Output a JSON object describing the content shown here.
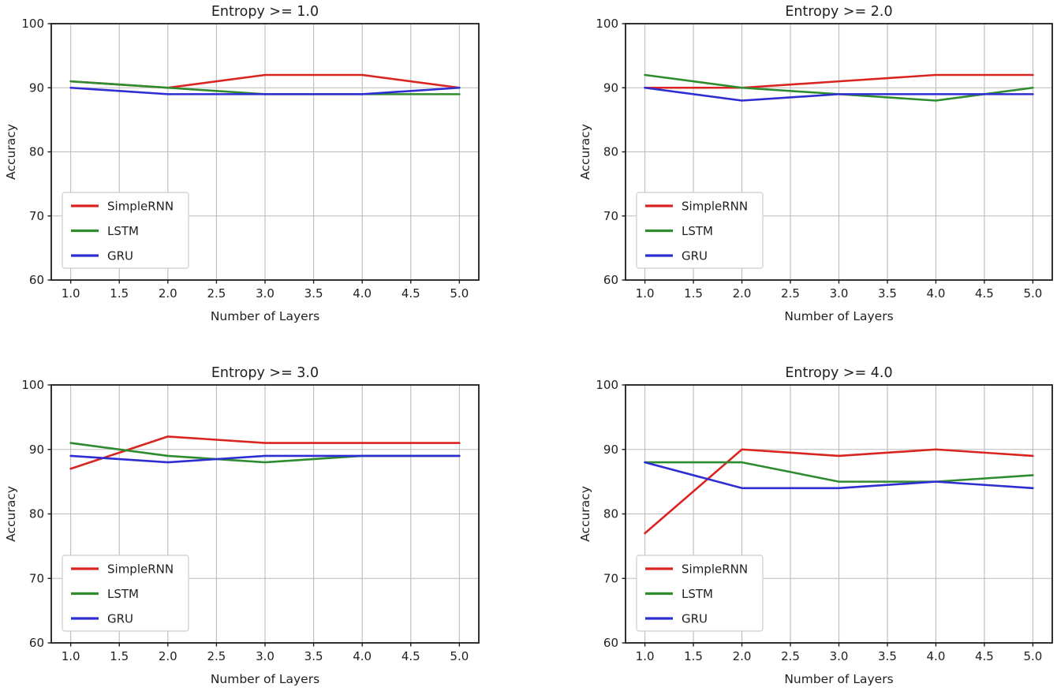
{
  "figure": {
    "background": "#ffffff",
    "grid_color": "#bbbbbb",
    "spine_color": "#1c1c1c",
    "text_color": "#1f1f1f",
    "legend_border": "#cccccc",
    "legend_background": "#ffffff"
  },
  "chart_data": [
    {
      "type": "line",
      "title": "Entropy >= 1.0",
      "xlabel": "Number of Layers",
      "ylabel": "Accuracy",
      "x": [
        1.0,
        2.0,
        3.0,
        4.0,
        5.0
      ],
      "xlim": [
        0.8,
        5.2
      ],
      "ylim": [
        60,
        100
      ],
      "x_tick_labels": [
        "1.0",
        "1.5",
        "2.0",
        "2.5",
        "3.0",
        "3.5",
        "4.0",
        "4.5",
        "5.0"
      ],
      "y_tick_labels": [
        "60",
        "70",
        "80",
        "90",
        "100"
      ],
      "x_ticks": [
        1.0,
        1.5,
        2.0,
        2.5,
        3.0,
        3.5,
        4.0,
        4.5,
        5.0
      ],
      "y_ticks": [
        60,
        70,
        80,
        90,
        100
      ],
      "grid": true,
      "legend_position": "lower left",
      "series": [
        {
          "name": "SimpleRNN",
          "color": "#d92420",
          "values": [
            91,
            90,
            92,
            92,
            90
          ]
        },
        {
          "name": "LSTM",
          "color": "#2e8b2e",
          "values": [
            91,
            90,
            89,
            89,
            89
          ]
        },
        {
          "name": "GRU",
          "color": "#2d2dd4",
          "values": [
            90,
            89,
            89,
            89,
            90
          ]
        }
      ]
    },
    {
      "type": "line",
      "title": "Entropy >= 2.0",
      "xlabel": "Number of Layers",
      "ylabel": "Accuracy",
      "x": [
        1.0,
        2.0,
        3.0,
        4.0,
        5.0
      ],
      "xlim": [
        0.8,
        5.2
      ],
      "ylim": [
        60,
        100
      ],
      "x_tick_labels": [
        "1.0",
        "1.5",
        "2.0",
        "2.5",
        "3.0",
        "3.5",
        "4.0",
        "4.5",
        "5.0"
      ],
      "y_tick_labels": [
        "60",
        "70",
        "80",
        "90",
        "100"
      ],
      "x_ticks": [
        1.0,
        1.5,
        2.0,
        2.5,
        3.0,
        3.5,
        4.0,
        4.5,
        5.0
      ],
      "y_ticks": [
        60,
        70,
        80,
        90,
        100
      ],
      "grid": true,
      "legend_position": "lower left",
      "series": [
        {
          "name": "SimpleRNN",
          "color": "#d92420",
          "values": [
            90,
            90,
            91,
            92,
            92
          ]
        },
        {
          "name": "LSTM",
          "color": "#2e8b2e",
          "values": [
            92,
            90,
            89,
            88,
            90
          ]
        },
        {
          "name": "GRU",
          "color": "#2d2dd4",
          "values": [
            90,
            88,
            89,
            89,
            89
          ]
        }
      ]
    },
    {
      "type": "line",
      "title": "Entropy >= 3.0",
      "xlabel": "Number of Layers",
      "ylabel": "Accuracy",
      "x": [
        1.0,
        2.0,
        3.0,
        4.0,
        5.0
      ],
      "xlim": [
        0.8,
        5.2
      ],
      "ylim": [
        60,
        100
      ],
      "x_tick_labels": [
        "1.0",
        "1.5",
        "2.0",
        "2.5",
        "3.0",
        "3.5",
        "4.0",
        "4.5",
        "5.0"
      ],
      "y_tick_labels": [
        "60",
        "70",
        "80",
        "90",
        "100"
      ],
      "x_ticks": [
        1.0,
        1.5,
        2.0,
        2.5,
        3.0,
        3.5,
        4.0,
        4.5,
        5.0
      ],
      "y_ticks": [
        60,
        70,
        80,
        90,
        100
      ],
      "grid": true,
      "legend_position": "lower left",
      "series": [
        {
          "name": "SimpleRNN",
          "color": "#d92420",
          "values": [
            87,
            92,
            91,
            91,
            91
          ]
        },
        {
          "name": "LSTM",
          "color": "#2e8b2e",
          "values": [
            91,
            89,
            88,
            89,
            89
          ]
        },
        {
          "name": "GRU",
          "color": "#2d2dd4",
          "values": [
            89,
            88,
            89,
            89,
            89
          ]
        }
      ]
    },
    {
      "type": "line",
      "title": "Entropy >= 4.0",
      "xlabel": "Number of Layers",
      "ylabel": "Accuracy",
      "x": [
        1.0,
        2.0,
        3.0,
        4.0,
        5.0
      ],
      "xlim": [
        0.8,
        5.2
      ],
      "ylim": [
        60,
        100
      ],
      "x_tick_labels": [
        "1.0",
        "1.5",
        "2.0",
        "2.5",
        "3.0",
        "3.5",
        "4.0",
        "4.5",
        "5.0"
      ],
      "y_tick_labels": [
        "60",
        "70",
        "80",
        "90",
        "100"
      ],
      "x_ticks": [
        1.0,
        1.5,
        2.0,
        2.5,
        3.0,
        3.5,
        4.0,
        4.5,
        5.0
      ],
      "y_ticks": [
        60,
        70,
        80,
        90,
        100
      ],
      "grid": true,
      "legend_position": "lower left",
      "series": [
        {
          "name": "SimpleRNN",
          "color": "#d92420",
          "values": [
            77,
            90,
            89,
            90,
            89
          ]
        },
        {
          "name": "LSTM",
          "color": "#2e8b2e",
          "values": [
            88,
            88,
            85,
            85,
            86
          ]
        },
        {
          "name": "GRU",
          "color": "#2d2dd4",
          "values": [
            88,
            84,
            84,
            85,
            84
          ]
        }
      ]
    }
  ]
}
